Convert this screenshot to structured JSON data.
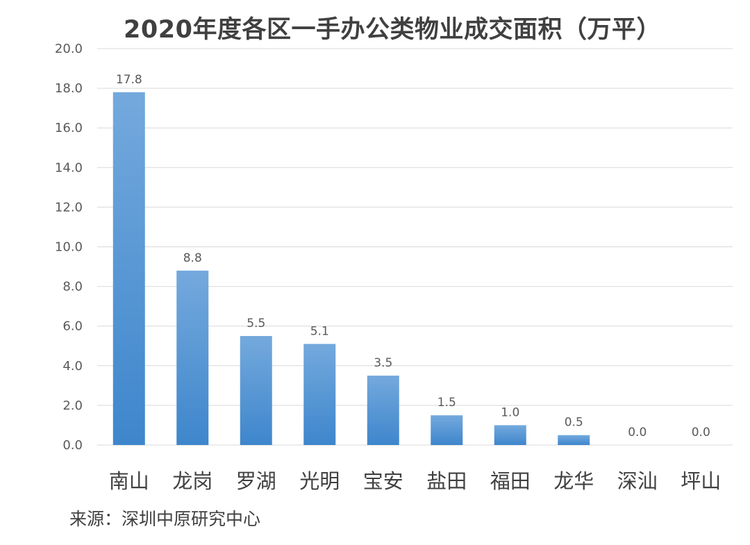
{
  "chart_data": {
    "type": "bar",
    "title": "2020年度各区一手办公类物业成交面积（万平）",
    "categories": [
      "南山",
      "龙岗",
      "罗湖",
      "光明",
      "宝安",
      "盐田",
      "福田",
      "龙华",
      "深汕",
      "坪山"
    ],
    "values": [
      17.8,
      8.8,
      5.5,
      5.1,
      3.5,
      1.5,
      1.0,
      0.5,
      0.0,
      0.0
    ],
    "value_labels": [
      "17.8",
      "8.8",
      "5.5",
      "5.1",
      "3.5",
      "1.5",
      "1.0",
      "0.5",
      "0.0",
      "0.0"
    ],
    "ylim": [
      0,
      20
    ],
    "yticks": [
      "0.0",
      "2.0",
      "4.0",
      "6.0",
      "8.0",
      "10.0",
      "12.0",
      "14.0",
      "16.0",
      "18.0",
      "20.0"
    ],
    "grid": true,
    "xlabel": "",
    "ylabel": "",
    "bar_color_top": "#74a9dd",
    "bar_color_bottom": "#3e86cc",
    "grid_color": "#d9d9d9"
  },
  "source": "来源：深圳中原研究中心"
}
